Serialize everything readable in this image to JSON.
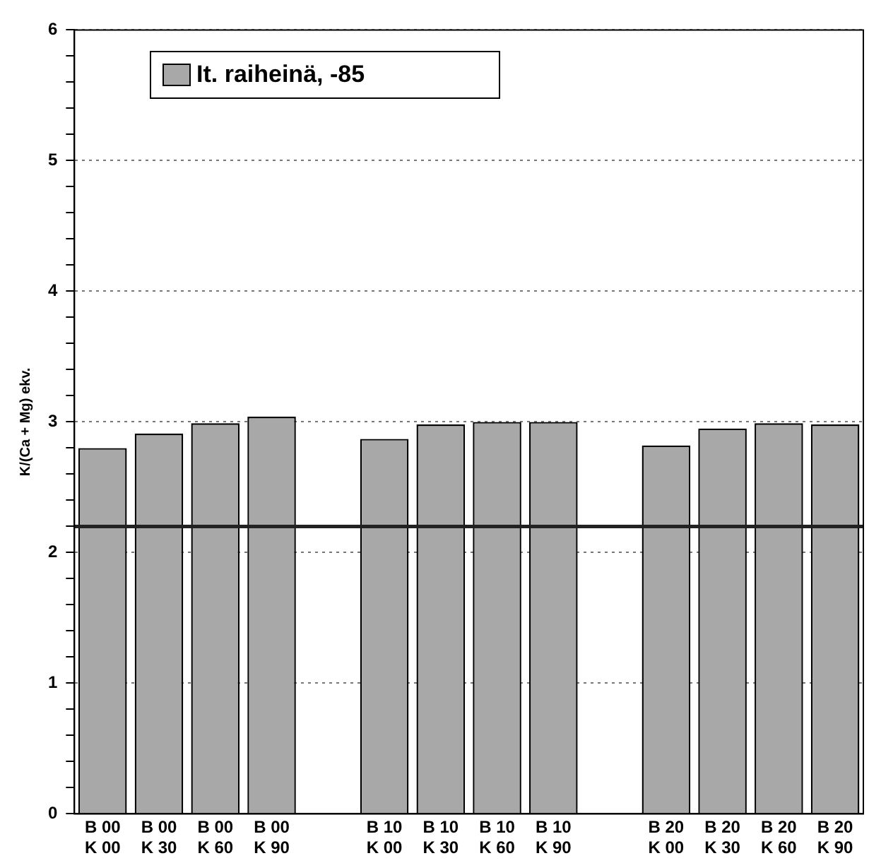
{
  "chart_data": {
    "type": "bar",
    "ylabel": "K/(Ca + Mg) ekv.",
    "categories": [
      "B 00\nK 00",
      "B 00\nK 30",
      "B 00\nK 60",
      "B 00\nK 90",
      null,
      "B 10\nK 00",
      "B 10\nK 30",
      "B 10\nK 60",
      "B 10\nK 90",
      null,
      "B 20\nK 00",
      "B 20\nK 30",
      "B 20\nK 60",
      "B 20\nK 90"
    ],
    "series": [
      {
        "name": "It. raiheinä, -85",
        "color": "#a8a8a8",
        "values": [
          2.8,
          2.91,
          2.99,
          3.04,
          null,
          2.87,
          2.98,
          3.0,
          3.0,
          null,
          2.82,
          2.95,
          2.99,
          2.98
        ]
      }
    ],
    "ylim": [
      0,
      6
    ],
    "yticks": [
      0,
      {
        "value": 0.2,
        "label": null
      },
      {
        "value": 0.4,
        "label": null
      },
      {
        "value": 0.6,
        "label": null
      },
      {
        "value": 0.8,
        "label": null
      },
      1,
      {
        "value": 1.2,
        "label": null
      },
      {
        "value": 1.4,
        "label": null
      },
      {
        "value": 1.6,
        "label": null
      },
      {
        "value": 1.8,
        "label": null
      },
      2,
      {
        "value": 2.2,
        "label": null
      },
      {
        "value": 2.4,
        "label": null
      },
      {
        "value": 2.6,
        "label": null
      },
      {
        "value": 2.8,
        "label": null
      },
      3,
      {
        "value": 3.2,
        "label": null
      },
      {
        "value": 3.4,
        "label": null
      },
      {
        "value": 3.6,
        "label": null
      },
      {
        "value": 3.8,
        "label": null
      },
      4,
      {
        "value": 4.2,
        "label": null
      },
      {
        "value": 4.4,
        "label": null
      },
      {
        "value": 4.6,
        "label": null
      },
      {
        "value": 4.8,
        "label": null
      },
      5,
      {
        "value": 5.2,
        "label": null
      },
      {
        "value": 5.4,
        "label": null
      },
      {
        "value": 5.6,
        "label": null
      },
      {
        "value": 5.8,
        "label": null
      },
      6
    ],
    "ref_lines": [
      {
        "axis": "y",
        "value": 2.2,
        "color": "#222222"
      }
    ],
    "grid": "y",
    "legend": "top left"
  }
}
